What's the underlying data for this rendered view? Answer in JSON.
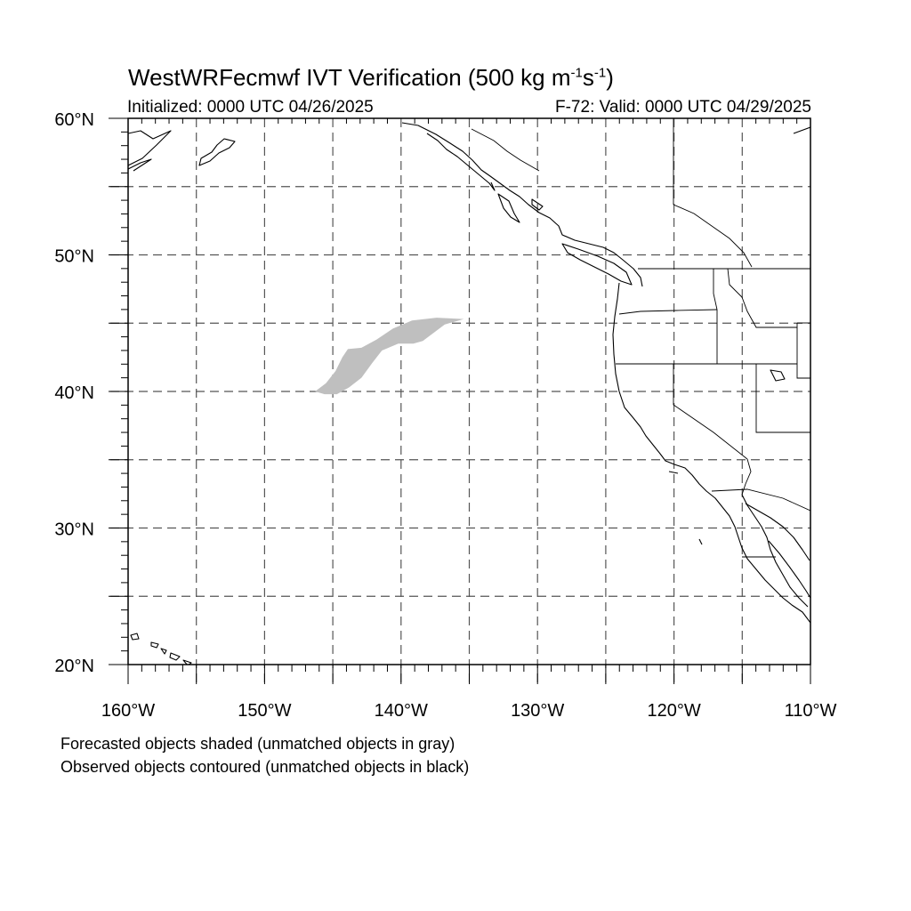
{
  "map": {
    "title_main": "WestWRFecmwf IVT Verification (500 kg m",
    "title_unit_exp1": "-1",
    "title_unit_s": "s",
    "title_unit_exp2": "-1",
    "title_close": ")",
    "initialized": "Initialized: 0000 UTC 04/26/2025",
    "valid": "F-72: Valid: 0000 UTC 04/29/2025",
    "lon_range": [
      -160,
      -110
    ],
    "lat_range": [
      20,
      60
    ],
    "lat_labels": [
      {
        "value": 60,
        "text": "60°N"
      },
      {
        "value": 50,
        "text": "50°N"
      },
      {
        "value": 40,
        "text": "40°N"
      },
      {
        "value": 30,
        "text": "30°N"
      },
      {
        "value": 20,
        "text": "20°N"
      }
    ],
    "lon_labels": [
      {
        "value": -160,
        "text": "160°W"
      },
      {
        "value": -150,
        "text": "150°W"
      },
      {
        "value": -140,
        "text": "140°W"
      },
      {
        "value": -130,
        "text": "130°W"
      },
      {
        "value": -120,
        "text": "120°W"
      },
      {
        "value": -110,
        "text": "110°W"
      }
    ],
    "grid_lat": [
      25,
      30,
      35,
      40,
      45,
      50,
      55
    ],
    "grid_lon": [
      -155,
      -150,
      -145,
      -140,
      -135,
      -130,
      -125,
      -120,
      -115
    ],
    "shaded_color": "#bfbfbf",
    "forecast_object": [
      [
        -146.3,
        40.0
      ],
      [
        -145.5,
        40.6
      ],
      [
        -144.8,
        41.5
      ],
      [
        -144.3,
        42.5
      ],
      [
        -143.9,
        43.1
      ],
      [
        -142.9,
        43.2
      ],
      [
        -141.8,
        43.8
      ],
      [
        -140.6,
        44.6
      ],
      [
        -139.2,
        45.2
      ],
      [
        -137.4,
        45.4
      ],
      [
        -135.4,
        45.3
      ],
      [
        -136.8,
        44.9
      ],
      [
        -137.6,
        44.3
      ],
      [
        -138.4,
        43.7
      ],
      [
        -139.1,
        43.5
      ],
      [
        -140.2,
        43.5
      ],
      [
        -141.4,
        43.0
      ],
      [
        -142.1,
        42.1
      ],
      [
        -142.9,
        41.0
      ],
      [
        -143.8,
        40.3
      ],
      [
        -144.7,
        39.8
      ],
      [
        -145.6,
        39.8
      ]
    ],
    "footnotes": [
      "Forecasted objects shaded (unmatched objects in gray)",
      "Observed objects contoured (unmatched objects in black)"
    ]
  }
}
